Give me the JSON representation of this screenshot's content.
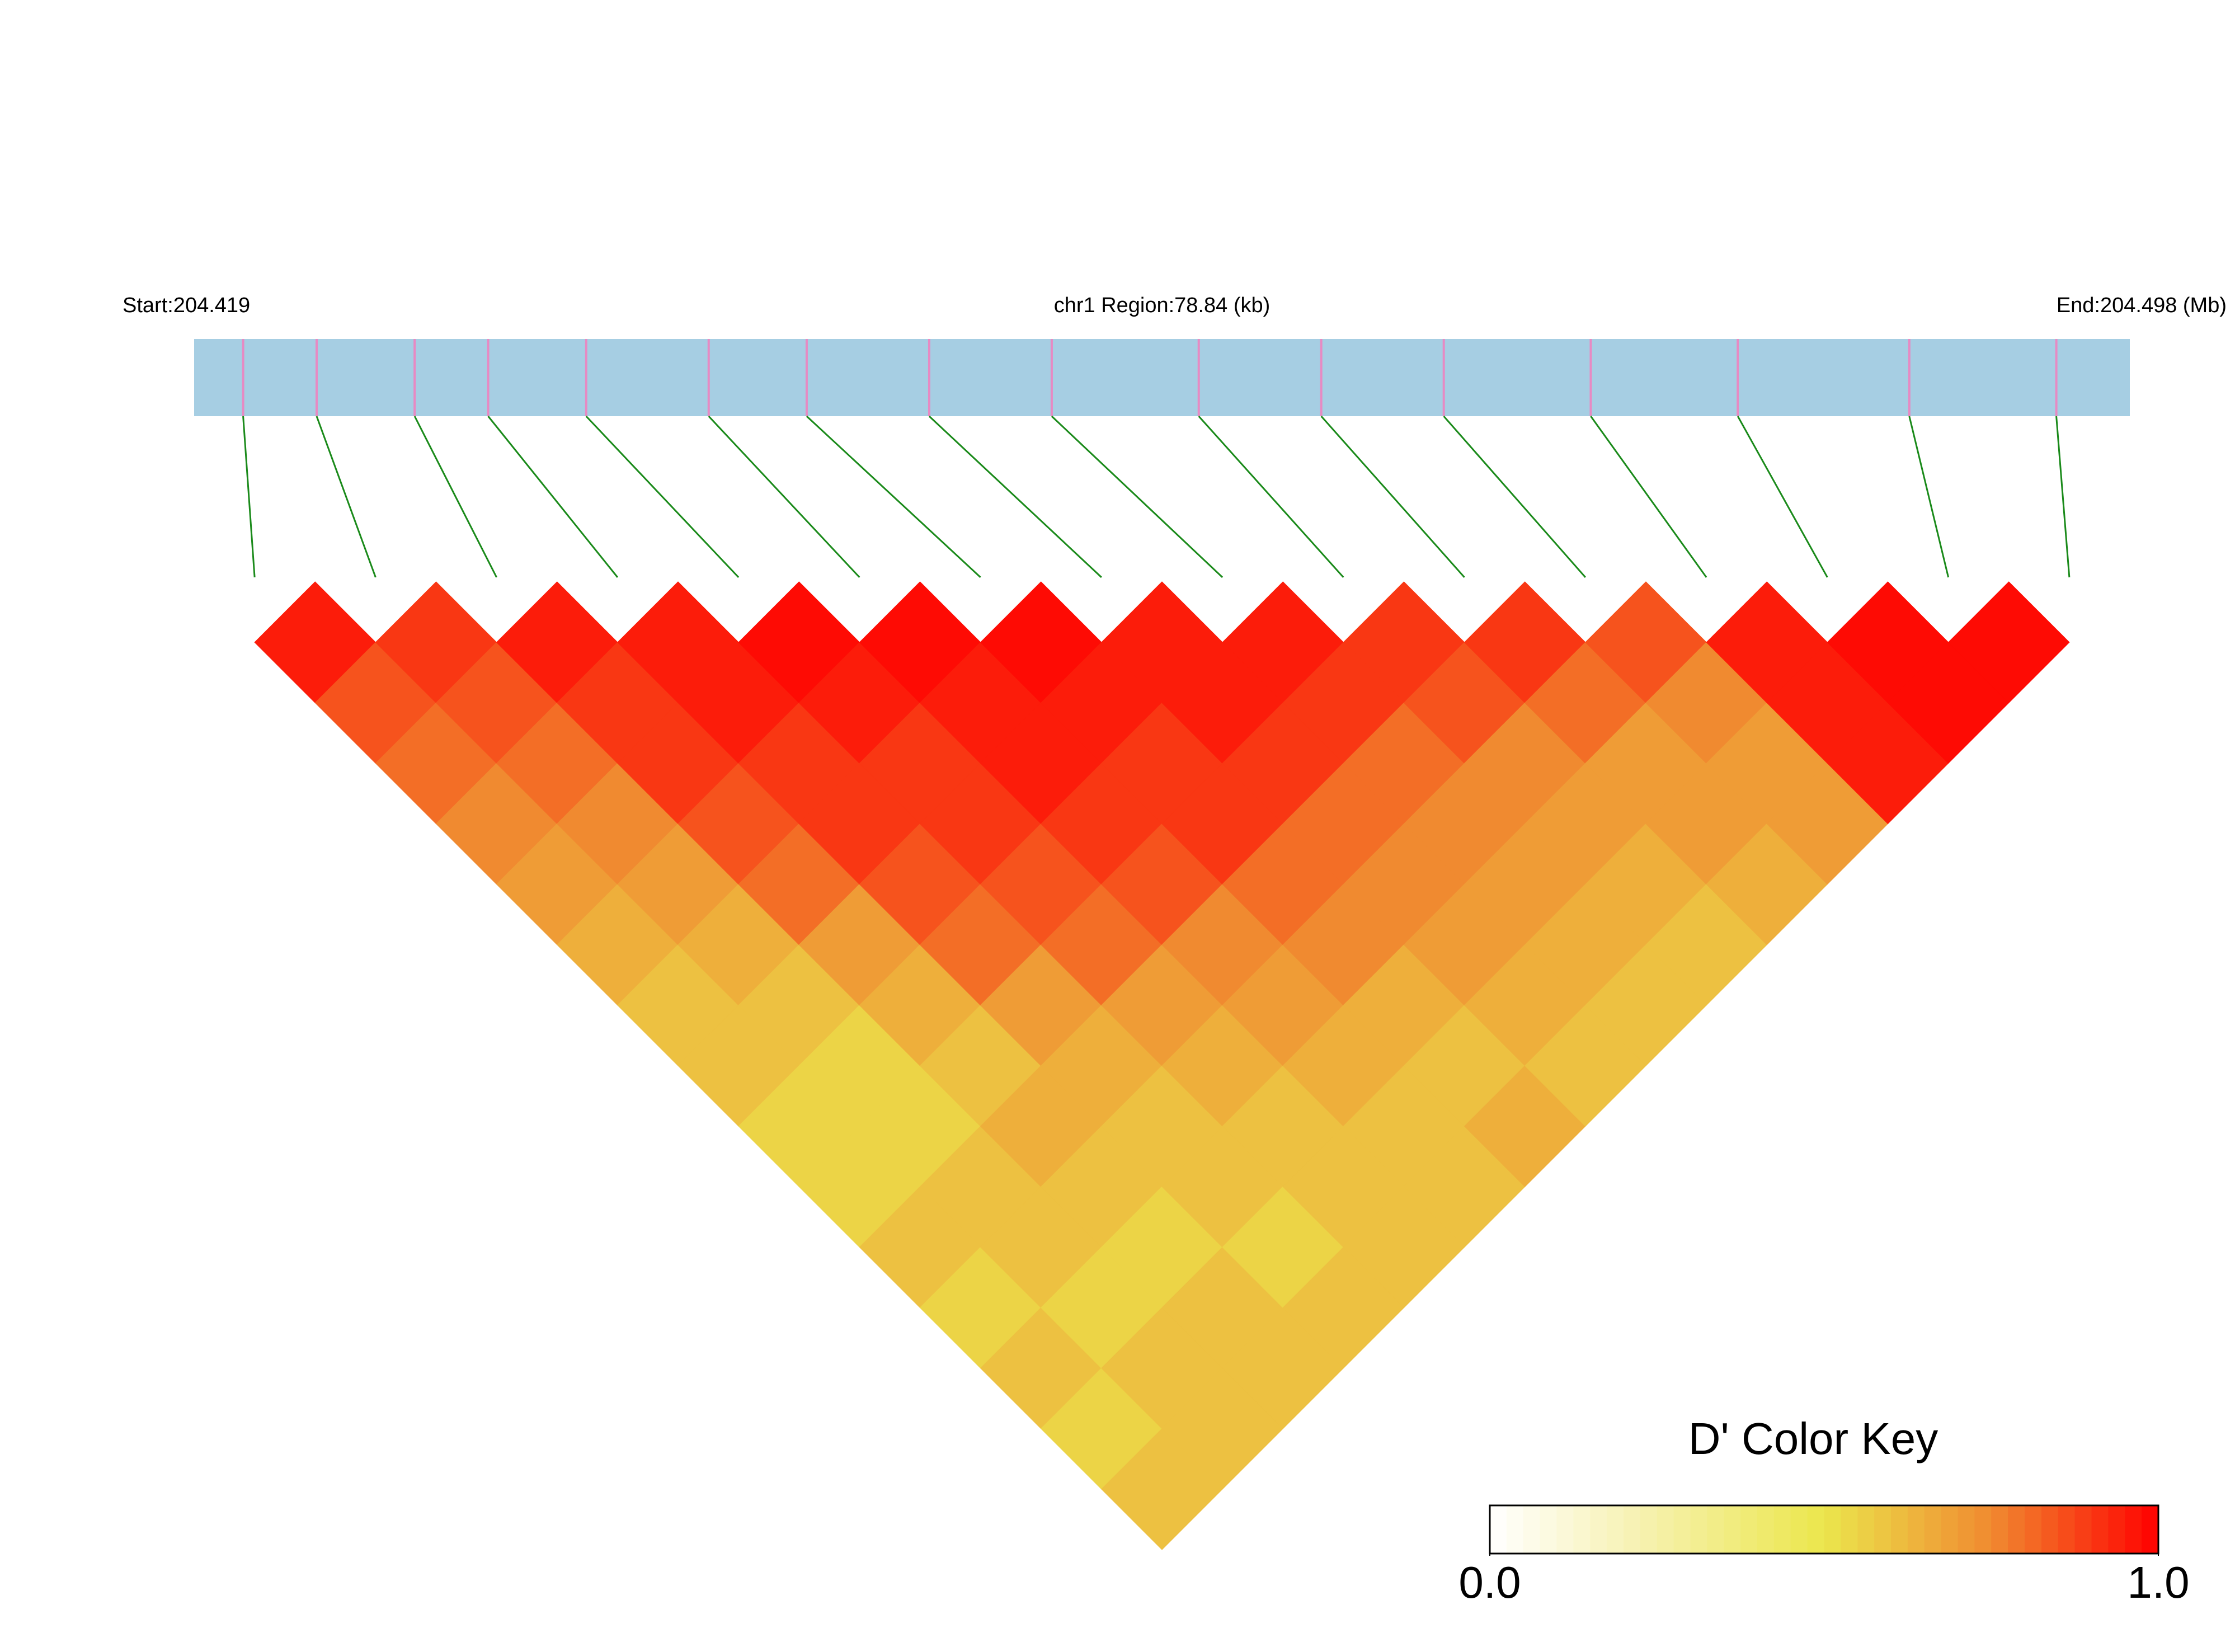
{
  "chart_data": {
    "type": "ld-heatmap",
    "start": {
      "value": 204.419,
      "label": "Start:204.419"
    },
    "region_label": "chr1 Region:78.84 (kb)",
    "end": {
      "value": 204.498,
      "label": "End:204.498 (Mb)"
    },
    "snp_positions": [
      204.421,
      204.424,
      204.428,
      204.431,
      204.435,
      204.44,
      204.444,
      204.449,
      204.454,
      204.46,
      204.465,
      204.47,
      204.476,
      204.482,
      204.489,
      204.495
    ],
    "dprime": [
      [
        0.95,
        0.85,
        0.8,
        0.75,
        0.7,
        0.65,
        0.6,
        0.6,
        0.55,
        0.55,
        0.6,
        0.55,
        0.6,
        0.55,
        0.6
      ],
      [
        0.9,
        0.85,
        0.8,
        0.75,
        0.7,
        0.65,
        0.6,
        0.55,
        0.55,
        0.6,
        0.6,
        0.55,
        0.6,
        0.6
      ],
      [
        0.95,
        0.9,
        0.9,
        0.85,
        0.8,
        0.7,
        0.65,
        0.6,
        0.65,
        0.6,
        0.55,
        0.6,
        0.6
      ],
      [
        0.95,
        0.95,
        0.9,
        0.9,
        0.85,
        0.8,
        0.7,
        0.65,
        0.6,
        0.6,
        0.55,
        0.6
      ],
      [
        0.98,
        0.95,
        0.9,
        0.9,
        0.85,
        0.8,
        0.7,
        0.65,
        0.6,
        0.6,
        0.6
      ],
      [
        0.98,
        0.95,
        0.95,
        0.9,
        0.85,
        0.75,
        0.7,
        0.65,
        0.6,
        0.6
      ],
      [
        0.98,
        0.95,
        0.9,
        0.9,
        0.8,
        0.75,
        0.65,
        0.6,
        0.65
      ],
      [
        0.95,
        0.95,
        0.9,
        0.8,
        0.75,
        0.7,
        0.65,
        0.6
      ],
      [
        0.95,
        0.9,
        0.8,
        0.75,
        0.7,
        0.65,
        0.6
      ],
      [
        0.9,
        0.85,
        0.75,
        0.7,
        0.65,
        0.6
      ],
      [
        0.9,
        0.8,
        0.7,
        0.7,
        0.65
      ],
      [
        0.85,
        0.75,
        0.7,
        0.7
      ],
      [
        0.95,
        0.95,
        0.95
      ],
      [
        0.98,
        0.98
      ],
      [
        0.98
      ]
    ],
    "colors": [
      "#ffffff",
      "#f5f0a8",
      "#ebe64c",
      "#f08a30",
      "#ff0000"
    ],
    "bar_color": "#a6cee3",
    "snp_color": "#e78ac3",
    "link_color": "#1a8a1a",
    "legend_title": "D' Color Key",
    "legend_ticks": [
      {
        "value": 0,
        "label": "0.0"
      },
      {
        "value": 1,
        "label": "1.0"
      }
    ]
  }
}
